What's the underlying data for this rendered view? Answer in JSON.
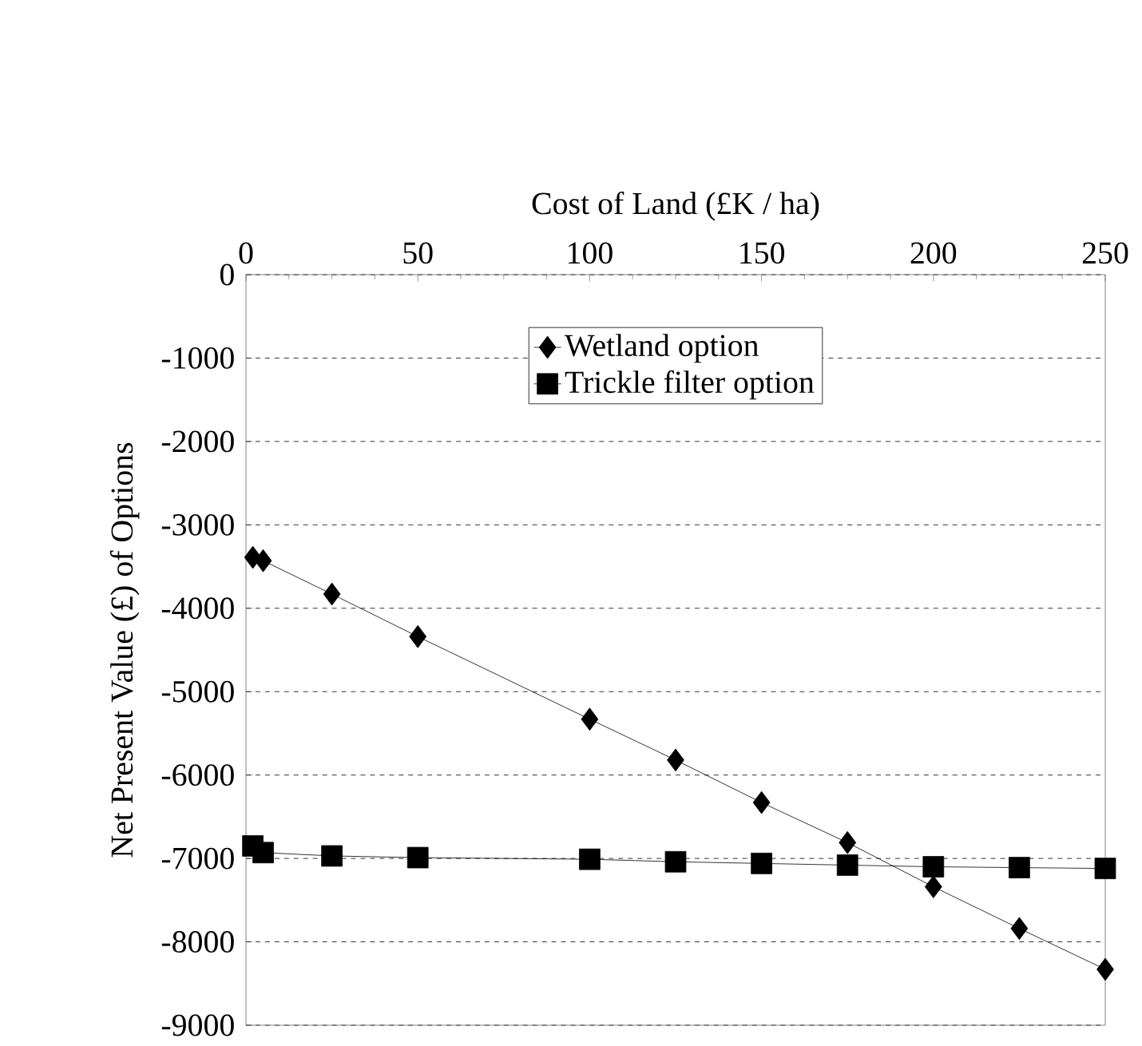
{
  "chart_data": {
    "type": "line",
    "xlabel": "Cost of Land (£K / ha)",
    "ylabel": "Net Present Value (£) of Options",
    "xlim": [
      0,
      250
    ],
    "xticks": [
      0,
      50,
      100,
      150,
      200,
      250
    ],
    "ylim": [
      -9000,
      0
    ],
    "yticks": [
      0,
      -1000,
      -2000,
      -3000,
      -4000,
      -5000,
      -6000,
      -7000,
      -8000,
      -9000
    ],
    "grid": "y",
    "legend": "top",
    "series": [
      {
        "name": "Wetland option",
        "color": "#000000",
        "marker": "diamond",
        "x": [
          2,
          5,
          25,
          50,
          100,
          125,
          150,
          175,
          200,
          225,
          250
        ],
        "values": [
          -3390,
          -3430,
          -3830,
          -4340,
          -5330,
          -5820,
          -6330,
          -6810,
          -7340,
          -7840,
          -8330
        ]
      },
      {
        "name": "Trickle filter option",
        "color": "#000000",
        "marker": "square",
        "x": [
          2,
          5,
          25,
          50,
          100,
          125,
          150,
          175,
          200,
          225,
          250
        ],
        "values": [
          -6850,
          -6930,
          -6970,
          -6990,
          -7010,
          -7040,
          -7060,
          -7080,
          -7100,
          -7110,
          -7120
        ]
      }
    ]
  }
}
